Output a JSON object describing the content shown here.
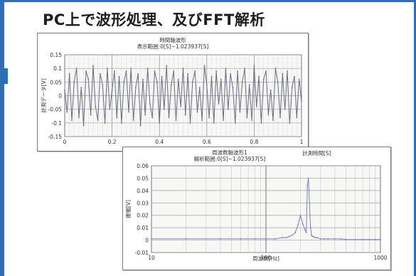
{
  "page": {
    "title": "PC上で波形処理、及びFFT解析",
    "accent_color": "#2f6db5"
  },
  "chart_data": [
    {
      "type": "line",
      "title": "時間軸波形",
      "subtitle": "表示範囲:0[S]~1.023937[S]",
      "xlabel": "",
      "ylabel": "計測データ[V]",
      "xlim": [
        0,
        1
      ],
      "ylim": [
        -0.15,
        0.15
      ],
      "xticks": [
        "0",
        "0.2",
        "0.4",
        "0.6",
        "0.8",
        "1"
      ],
      "yticks": [
        "0.15",
        "0.1",
        "0.05",
        "0",
        "-0.05",
        "-0.1",
        "-0.15"
      ],
      "grid": true,
      "series": [
        {
          "color": "#6a6a80",
          "x": [
            0.0,
            0.01,
            0.02,
            0.03,
            0.04,
            0.05,
            0.06,
            0.07,
            0.08,
            0.09,
            0.1,
            0.11,
            0.12,
            0.13,
            0.14,
            0.15,
            0.16,
            0.17,
            0.18,
            0.19,
            0.2,
            0.21,
            0.22,
            0.23,
            0.24,
            0.25,
            0.26,
            0.27,
            0.28,
            0.29,
            0.3,
            0.31,
            0.32,
            0.33,
            0.34,
            0.35,
            0.36,
            0.37,
            0.38,
            0.39,
            0.4,
            0.41,
            0.42,
            0.43,
            0.44,
            0.45,
            0.46,
            0.47,
            0.48,
            0.49,
            0.5,
            0.51,
            0.52,
            0.53,
            0.54,
            0.55,
            0.56,
            0.57,
            0.58,
            0.59,
            0.6,
            0.61,
            0.62,
            0.63,
            0.64,
            0.65,
            0.66,
            0.67,
            0.68,
            0.69,
            0.7,
            0.71,
            0.72,
            0.73,
            0.74,
            0.75,
            0.76,
            0.77,
            0.78,
            0.79,
            0.8,
            0.81,
            0.82,
            0.83,
            0.84,
            0.85,
            0.86,
            0.87,
            0.88,
            0.89,
            0.9,
            0.91,
            0.92,
            0.93,
            0.94,
            0.95,
            0.96,
            0.97,
            0.98,
            0.99,
            1.0
          ],
          "y": [
            0.02,
            -0.06,
            0.08,
            -0.09,
            0.05,
            0.1,
            -0.08,
            0.03,
            -0.11,
            0.09,
            0.06,
            -0.07,
            0.11,
            -0.04,
            -0.09,
            0.08,
            0.04,
            -0.1,
            0.1,
            -0.05,
            0.02,
            0.09,
            -0.08,
            0.07,
            -0.1,
            0.05,
            0.09,
            -0.06,
            0.1,
            -0.09,
            0.03,
            0.08,
            -0.11,
            0.06,
            -0.07,
            0.1,
            -0.03,
            -0.08,
            0.09,
            0.05,
            -0.1,
            0.07,
            -0.05,
            0.11,
            -0.08,
            0.04,
            0.09,
            -0.09,
            0.06,
            -0.04,
            0.1,
            -0.07,
            0.08,
            -0.1,
            0.05,
            0.09,
            -0.06,
            0.03,
            -0.09,
            0.11,
            0.04,
            -0.08,
            0.07,
            -0.1,
            0.09,
            -0.03,
            0.06,
            -0.09,
            0.1,
            -0.05,
            0.08,
            0.03,
            -0.1,
            0.09,
            -0.06,
            0.05,
            0.1,
            -0.08,
            0.04,
            -0.09,
            0.11,
            -0.04,
            0.07,
            -0.1,
            0.06,
            0.09,
            -0.07,
            0.02,
            -0.09,
            0.1,
            0.05,
            -0.08,
            0.08,
            -0.05,
            0.09,
            -0.1,
            0.03,
            0.07,
            -0.08,
            0.06,
            -0.02
          ]
        }
      ]
    },
    {
      "type": "line",
      "title": "周波数軸波形1",
      "subtitle": "解析範囲:0[S]~1.023937[S]",
      "header_extra": "計測時間[S]",
      "xlabel": "周波数[Hz]",
      "ylabel": "振幅[V]",
      "xscale": "log",
      "xlim": [
        10,
        1000
      ],
      "ylim": [
        -0.01,
        0.06
      ],
      "xticks": [
        "10",
        "100",
        "1000"
      ],
      "yticks": [
        "0.06",
        "0.05",
        "0.04",
        "0.03",
        "0.02",
        "0.01",
        "0",
        "-0.01"
      ],
      "grid": true,
      "series": [
        {
          "color": "#7a82b8",
          "x": [
            10,
            20,
            40,
            60,
            80,
            100,
            120,
            140,
            150,
            160,
            170,
            180,
            190,
            200,
            210,
            220,
            225,
            230,
            235,
            240,
            245,
            250,
            255,
            260,
            270,
            280,
            300,
            320,
            350,
            400,
            450,
            500,
            600,
            700,
            800,
            900,
            1000
          ],
          "y": [
            0.001,
            0.001,
            0.001,
            0.001,
            0.001,
            0.001,
            0.001,
            0.002,
            0.002,
            0.003,
            0.004,
            0.006,
            0.012,
            0.02,
            0.013,
            0.008,
            0.006,
            0.044,
            0.05,
            0.03,
            0.01,
            0.004,
            0.003,
            0.003,
            0.002,
            0.002,
            0.001,
            0.001,
            0.001,
            0.001,
            0.001,
            0.0005,
            0.0005,
            0.0005,
            0.0005,
            0.0005,
            0.0005
          ]
        }
      ]
    }
  ]
}
